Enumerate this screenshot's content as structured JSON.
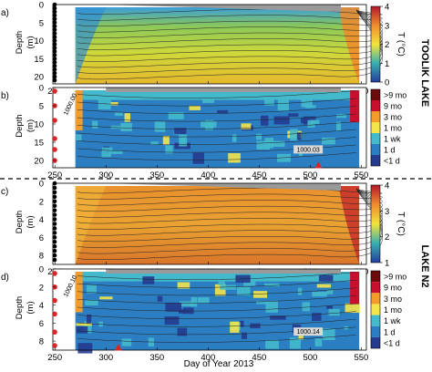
{
  "x_axis": {
    "label": "Day of Year 2013",
    "range": [
      248,
      555
    ],
    "ticks": [
      250,
      300,
      350,
      400,
      450,
      500,
      550
    ]
  },
  "lakes": [
    {
      "name": "TOOLIK  LAKE"
    },
    {
      "name": "LAKE  N2"
    }
  ],
  "marker_color": "#d62728",
  "panels": [
    {
      "letter": "a)",
      "ylabel_line1": "Depth",
      "ylabel_line2": "(m)",
      "ylim": [
        0,
        22
      ],
      "yticks": [
        0,
        5,
        10,
        15,
        20
      ],
      "colorbar": {
        "label": "T (°C)",
        "ticks": [
          "4",
          "3",
          "2",
          "1",
          "0"
        ]
      },
      "isotherm_labels": [],
      "markers": {
        "sensor_depths": [
          0,
          1,
          2,
          3,
          4,
          5,
          6,
          7,
          8,
          9,
          10,
          11,
          12,
          13,
          14,
          15,
          16,
          17,
          18,
          19,
          20,
          21
        ],
        "red_days": []
      }
    },
    {
      "letter": "b)",
      "ylabel_line1": "Depth",
      "ylabel_line2": "(m)",
      "ylim": [
        0,
        22
      ],
      "yticks": [
        0,
        5,
        10,
        15,
        20
      ],
      "colorbar": {
        "label": "",
        "ticks": [
          ">9 mo",
          "9 mo",
          "3 mo",
          "1 mo",
          "1 wk",
          "1 d",
          "<1 d"
        ]
      },
      "isotherm_labels": [
        "1000.00",
        "1000.03"
      ],
      "markers": {
        "sensor_depths": [
          1,
          5,
          9,
          14,
          17,
          20
        ],
        "red_days": [
          508
        ]
      }
    },
    {
      "letter": "c)",
      "ylabel_line1": "Depth",
      "ylabel_line2": "(m)",
      "ylim": [
        0,
        9
      ],
      "yticks": [
        0,
        2,
        4,
        6,
        8
      ],
      "colorbar": {
        "label": "T (°C)",
        "ticks": [
          "4",
          "3",
          "2",
          "1"
        ]
      },
      "isotherm_labels": [],
      "markers": {
        "sensor_depths": [
          0,
          0.5,
          1,
          1.5,
          2,
          2.5,
          3,
          3.5,
          4,
          4.5,
          5,
          5.5,
          6,
          6.5,
          7,
          7.5,
          8,
          8.5
        ],
        "red_days": []
      }
    },
    {
      "letter": "d)",
      "ylabel_line1": "Depth",
      "ylabel_line2": "(m)",
      "ylim": [
        0,
        9
      ],
      "yticks": [
        0,
        2,
        4,
        6,
        8
      ],
      "colorbar": {
        "label": "",
        "ticks": [
          ">9 mo",
          "9 mo",
          "3 mo",
          "1 mo",
          "1 wk",
          "1 d",
          "<1 d"
        ]
      },
      "isotherm_labels": [
        "1000.10",
        "1000.14"
      ],
      "markers": {
        "sensor_depths": [
          0.5,
          2,
          3.5,
          5,
          7,
          8.5
        ],
        "red_days": [
          312
        ]
      }
    }
  ],
  "chart_data": [
    {
      "type": "heatmap",
      "panel": "a",
      "variable": "T (°C)",
      "x": [
        270,
        300,
        350,
        400,
        450,
        500,
        530
      ],
      "depths": [
        1,
        5,
        10,
        15,
        20
      ],
      "values": [
        [
          2.0,
          1.8,
          2.2,
          2.6,
          3.0,
          3.2,
          3.6
        ],
        [
          2.1,
          2.1,
          2.4,
          2.7,
          3.0,
          3.2,
          3.5
        ],
        [
          2.2,
          2.2,
          2.5,
          2.8,
          3.0,
          3.2,
          3.4
        ],
        [
          2.3,
          2.3,
          2.6,
          2.8,
          3.0,
          3.1,
          3.3
        ],
        [
          2.5,
          2.5,
          2.7,
          2.9,
          3.0,
          3.1,
          3.2
        ]
      ],
      "xlim": [
        248,
        555
      ],
      "ylim": [
        0,
        22
      ],
      "zlim": [
        0,
        4
      ]
    },
    {
      "type": "heatmap",
      "panel": "b",
      "variable": "residence time",
      "categories": [
        ">9 mo",
        "9 mo",
        "3 mo",
        "1 mo",
        "1 wk",
        "1 d",
        "<1 d"
      ],
      "xlim": [
        248,
        555
      ],
      "ylim": [
        0,
        22
      ]
    },
    {
      "type": "heatmap",
      "panel": "c",
      "variable": "T (°C)",
      "x": [
        270,
        300,
        350,
        400,
        450,
        500,
        530
      ],
      "depths": [
        1,
        3,
        5,
        7,
        8.5
      ],
      "values": [
        [
          3.2,
          2.8,
          2.6,
          2.5,
          2.5,
          2.8,
          3.4
        ],
        [
          3.4,
          3.1,
          2.8,
          2.7,
          2.7,
          2.9,
          3.6
        ],
        [
          3.6,
          3.3,
          3.0,
          2.9,
          2.9,
          3.0,
          3.8
        ],
        [
          3.8,
          3.5,
          3.2,
          3.1,
          3.1,
          3.2,
          3.9
        ],
        [
          3.9,
          3.7,
          3.4,
          3.3,
          3.3,
          3.4,
          4.0
        ]
      ],
      "xlim": [
        248,
        555
      ],
      "ylim": [
        0,
        9
      ],
      "zlim": [
        1,
        4
      ]
    },
    {
      "type": "heatmap",
      "panel": "d",
      "variable": "residence time",
      "categories": [
        ">9 mo",
        "9 mo",
        "3 mo",
        "1 mo",
        "1 wk",
        "1 d",
        "<1 d"
      ],
      "xlim": [
        248,
        555
      ],
      "ylim": [
        0,
        9
      ]
    }
  ]
}
